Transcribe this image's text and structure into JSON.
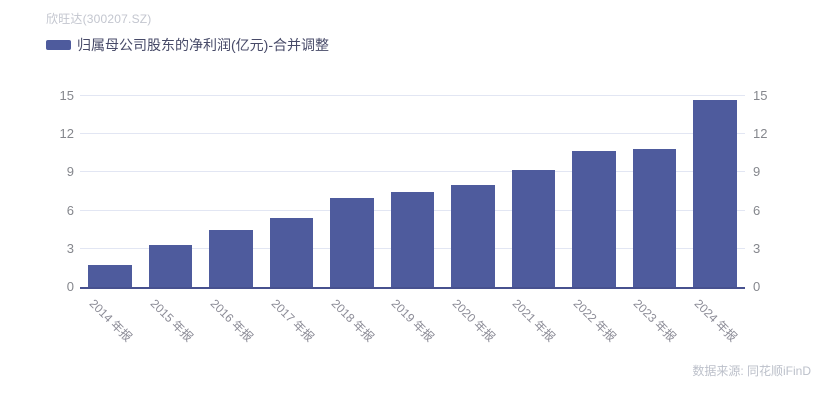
{
  "header": {
    "title": "欣旺达(300207.SZ)"
  },
  "legend": {
    "label": "归属母公司股东的净利润(亿元)-合并调整"
  },
  "footer": {
    "source": "数据来源: 同花顺iFinD"
  },
  "colors": {
    "bar": "#4e5b9d",
    "axis_line": "#47518f",
    "gridline": "#e2e6f3",
    "y_tick_label": "#85878d",
    "x_tick_label": "#8b8b96",
    "title_text": "#c3c6cf",
    "legend_text": "#474a68",
    "source_text": "#bcc0ca"
  },
  "chart_data": {
    "type": "bar",
    "title": "欣旺达(300207.SZ)",
    "series": [
      {
        "name": "归属母公司股东的净利润(亿元)-合并调整",
        "values": [
          1.7,
          3.3,
          4.5,
          5.4,
          7.0,
          7.5,
          8.0,
          9.2,
          10.7,
          10.8,
          14.7
        ]
      }
    ],
    "categories": [
      "2014 年报",
      "2015 年报",
      "2016 年报",
      "2017 年报",
      "2018 年报",
      "2019 年报",
      "2020 年报",
      "2021 年报",
      "2022 年报",
      "2023 年报",
      "2024 年报"
    ],
    "xlabel": "",
    "ylabel": "",
    "ylim": [
      0,
      15
    ],
    "yticks": [
      0,
      3,
      6,
      9,
      12,
      15
    ],
    "grid": true,
    "legend_position": "top-left",
    "y_axis_sides": "both",
    "x_label_rotation": 45,
    "source": "数据来源: 同花顺iFinD"
  }
}
